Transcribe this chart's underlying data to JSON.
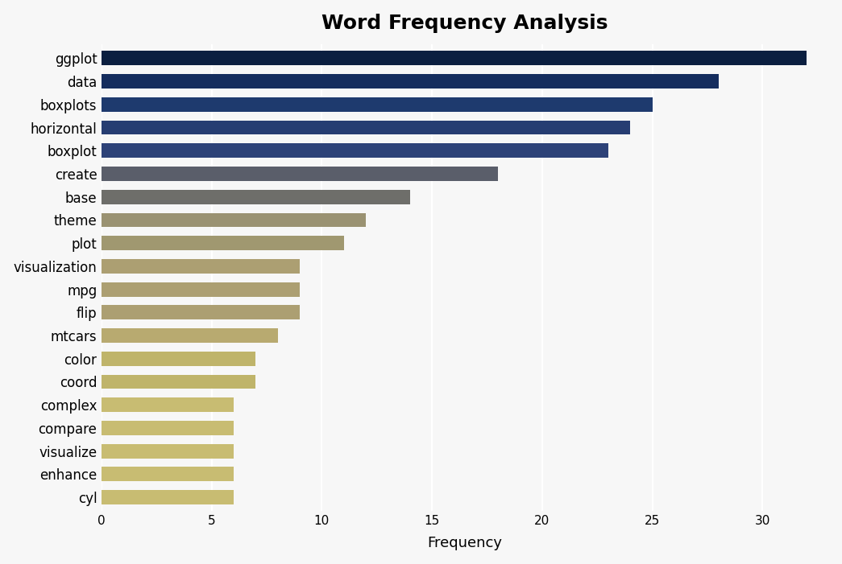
{
  "title": "Word Frequency Analysis",
  "categories": [
    "ggplot",
    "data",
    "boxplots",
    "horizontal",
    "boxplot",
    "create",
    "base",
    "theme",
    "plot",
    "visualization",
    "mpg",
    "flip",
    "mtcars",
    "color",
    "coord",
    "complex",
    "compare",
    "visualize",
    "enhance",
    "cyl"
  ],
  "values": [
    32,
    28,
    25,
    24,
    23,
    18,
    14,
    12,
    11,
    9,
    9,
    9,
    8,
    7,
    7,
    6,
    6,
    6,
    6,
    6
  ],
  "bar_colors": [
    "#0b1f40",
    "#152d5e",
    "#1e3a6e",
    "#263d72",
    "#2d4278",
    "#5a5e6a",
    "#6e6e6a",
    "#9a9272",
    "#a09870",
    "#ac9f72",
    "#ac9f72",
    "#ac9f72",
    "#b8aa70",
    "#bfb46a",
    "#bfb46a",
    "#c8bc72",
    "#c8bc72",
    "#c8bc72",
    "#c8bc72",
    "#c8bc72"
  ],
  "xlabel": "Frequency",
  "ylabel": "",
  "xlim": [
    0,
    33
  ],
  "background_color": "#f7f7f7",
  "grid_color": "#ffffff",
  "title_fontsize": 18,
  "label_fontsize": 12,
  "tick_fontsize": 11,
  "bar_height": 0.62,
  "xticks": [
    0,
    5,
    10,
    15,
    20,
    25,
    30
  ]
}
